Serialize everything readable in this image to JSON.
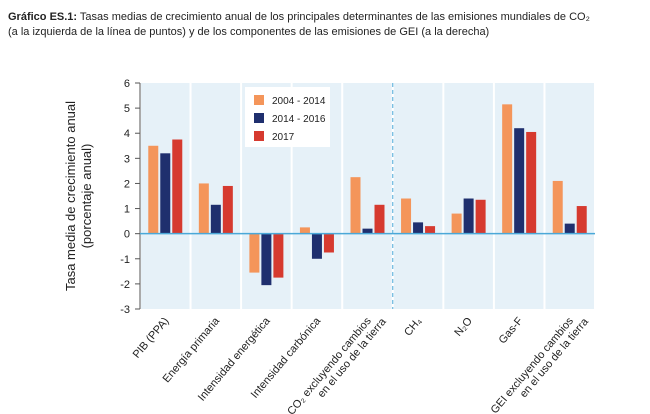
{
  "chart_data": {
    "type": "bar",
    "title_label": "Gráfico ES.1:",
    "title": "Tasas medias de crecimiento anual de los principales determinantes de las emisiones mundiales de CO₂\n(a la izquierda de la línea de puntos) y de los componentes de las emisiones de GEI (a la derecha)",
    "y_label": "Tasa media de crecimiento anual\n(porcentaje anual)",
    "categories": [
      "PIB (PPA)",
      "Energía primaria",
      "Intensidad energética",
      "Intensidad carbónica",
      "CO₂ excluyendo cambios\nen el uso de la tierra",
      "CH₄",
      "N₂O",
      "Gas-F",
      "GEI excluyendo cambios\nen el uso de la tierra"
    ],
    "series": [
      {
        "name": "2004 - 2014",
        "color": "#f4955a",
        "values": [
          3.5,
          2.0,
          -1.55,
          0.25,
          2.25,
          1.4,
          0.8,
          5.15,
          2.1
        ]
      },
      {
        "name": "2014 - 2016",
        "color": "#1f2f6e",
        "values": [
          3.2,
          1.15,
          -2.05,
          -1.0,
          0.2,
          0.45,
          1.4,
          4.2,
          0.4
        ]
      },
      {
        "name": "2017",
        "color": "#d63a2f",
        "values": [
          3.75,
          1.9,
          -1.75,
          -0.75,
          1.15,
          0.3,
          1.35,
          4.05,
          1.1
        ]
      }
    ],
    "ylim": [
      -3,
      6
    ],
    "yticks": [
      -3,
      -2,
      -1,
      0,
      1,
      2,
      3,
      4,
      5,
      6
    ],
    "divider_after_category": 4,
    "legend": "upper-left"
  }
}
